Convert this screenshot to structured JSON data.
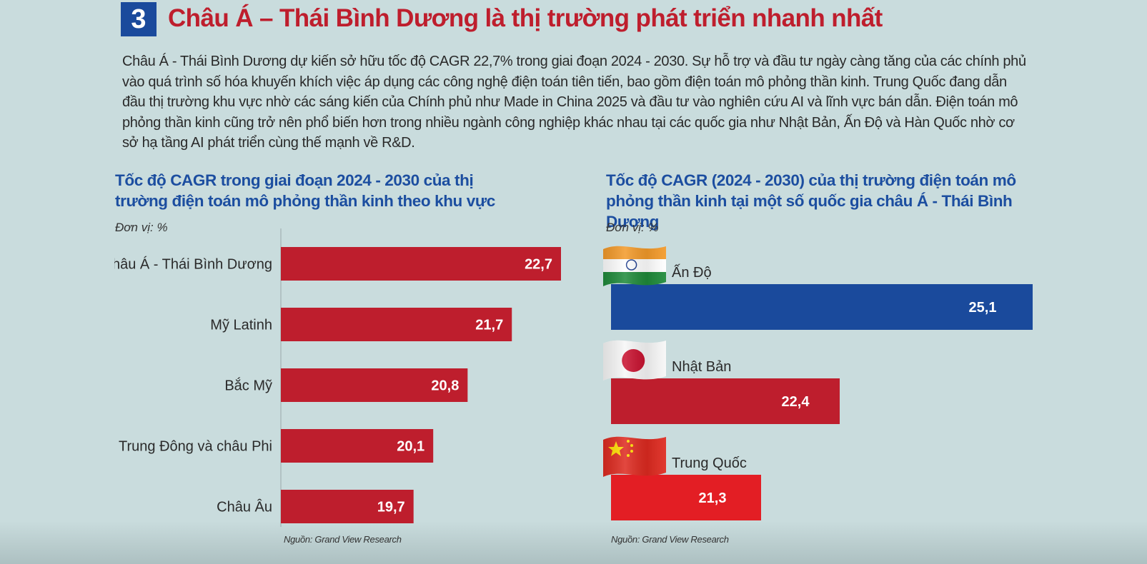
{
  "section_number": "3",
  "heading": "Châu Á – Thái Bình Dương là thị trường phát triển nhanh nhất",
  "intro": "Châu Á - Thái Bình Dương dự kiến sở hữu tốc độ CAGR 22,7% trong giai đoạn 2024 - 2030. Sự hỗ trợ và đầu tư ngày càng tăng của các chính phủ vào quá trình số hóa khuyến khích việc áp dụng các công nghệ điện toán tiên tiến, bao gồm điện toán mô phỏng thần kinh. Trung Quốc đang dẫn đầu thị trường khu vực nhờ các sáng kiến của Chính phủ như Made in China 2025 và đầu tư vào nghiên cứu AI và lĩnh vực bán dẫn. Điện toán mô phỏng thần kinh cũng trở nên phổ biến hơn trong nhiều ngành công nghiệp khác nhau tại các quốc gia như Nhật Bản, Ấn Độ và Hàn Quốc nhờ cơ sở hạ tầng AI phát triển cùng thế mạnh về R&D.",
  "colors": {
    "region_bar": "#be1e2d",
    "india_bar": "#1a4a9c",
    "japan_bar": "#be1e2d",
    "china_bar": "#e31e24",
    "heading": "#be1e2d",
    "chart_title": "#1c4ea0"
  },
  "chart_data": [
    {
      "type": "bar",
      "orientation": "horizontal",
      "title": "Tốc độ CAGR trong giai đoạn 2024 - 2030 của thị trường điện toán mô phỏng thần kinh theo khu vực",
      "unit": "Đơn vị: %",
      "source": "Nguồn: Grand View Research",
      "categories": [
        "Châu Á - Thái Bình Dương",
        "Mỹ Latinh",
        "Bắc Mỹ",
        "Trung Đông và châu Phi",
        "Châu Âu"
      ],
      "values": [
        22.7,
        21.7,
        20.8,
        20.1,
        19.7
      ],
      "value_labels": [
        "22,7",
        "21,7",
        "20,8",
        "20,1",
        "19,7"
      ],
      "xlim": [
        17,
        22.7
      ],
      "grid": false
    },
    {
      "type": "bar",
      "orientation": "horizontal",
      "title": "Tốc độ CAGR (2024 - 2030) của thị trường điện toán mô phỏng thần kinh tại một số quốc gia châu Á - Thái Bình Dương",
      "unit": "Đơn vị: %",
      "source": "Nguồn: Grand View Research",
      "categories": [
        "Ấn Độ",
        "Nhật Bản",
        "Trung Quốc"
      ],
      "values": [
        25.1,
        22.4,
        21.3
      ],
      "value_labels": [
        "25,1",
        "22,4",
        "21,3"
      ],
      "icons": [
        "india-flag-icon",
        "japan-flag-icon",
        "china-flag-icon"
      ],
      "xlim": [
        19.2,
        25.1
      ],
      "grid": false
    }
  ]
}
